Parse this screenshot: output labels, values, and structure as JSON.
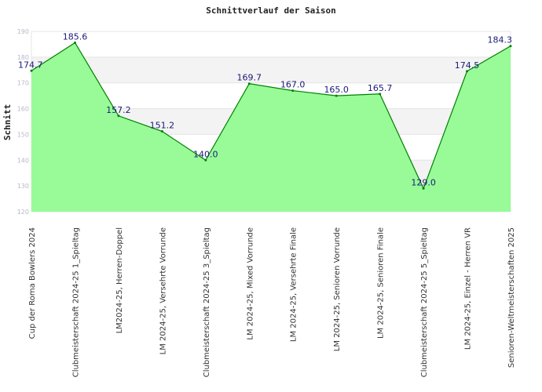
{
  "chart_data": {
    "type": "area",
    "title": "Schnittverlauf der Saison",
    "xlabel": "",
    "ylabel": "Schnitt",
    "ylim": [
      120,
      190
    ],
    "yticks": [
      120,
      130,
      140,
      150,
      160,
      170,
      180,
      190
    ],
    "grid": true,
    "legend": "none",
    "categories": [
      "Cup der Roma Bowlers 2024",
      "Clubmeisterschaft 2024-25   1_Spieltag",
      "LM2024-25, Herren-Doppel",
      "LM 2024-25, Versehrte Vorrunde",
      "Clubmeisterschaft 2024-25   3_Spieltag",
      "LM 2024-25, Mixed Vorrunde",
      "LM 2024-25, Versehrte Finale",
      "LM 2024-25, Senioren Vorrunde",
      "LM 2024-25, Senioren Finale",
      "Clubmeisterschaft 2024-25   5_Spieltag",
      "LM 2024-25, Einzel - Herren VR",
      "Senioren-Weltmeisterschaften 2025"
    ],
    "values": [
      174.7,
      185.6,
      157.2,
      151.2,
      140.0,
      169.7,
      167.0,
      165.0,
      165.7,
      129.0,
      174.5,
      184.3
    ],
    "data_labels": [
      "174.7",
      "185.6",
      "157.2",
      "151.2",
      "140.0",
      "169.7",
      "167.0",
      "165.0",
      "165.7",
      "129.0",
      "174.5",
      "184.3"
    ],
    "colors": {
      "fill": "#98fb98",
      "line": "#008000",
      "band": "#f3f3f3",
      "grid": "#e4e4e4",
      "label": "#1a1a7a"
    }
  }
}
